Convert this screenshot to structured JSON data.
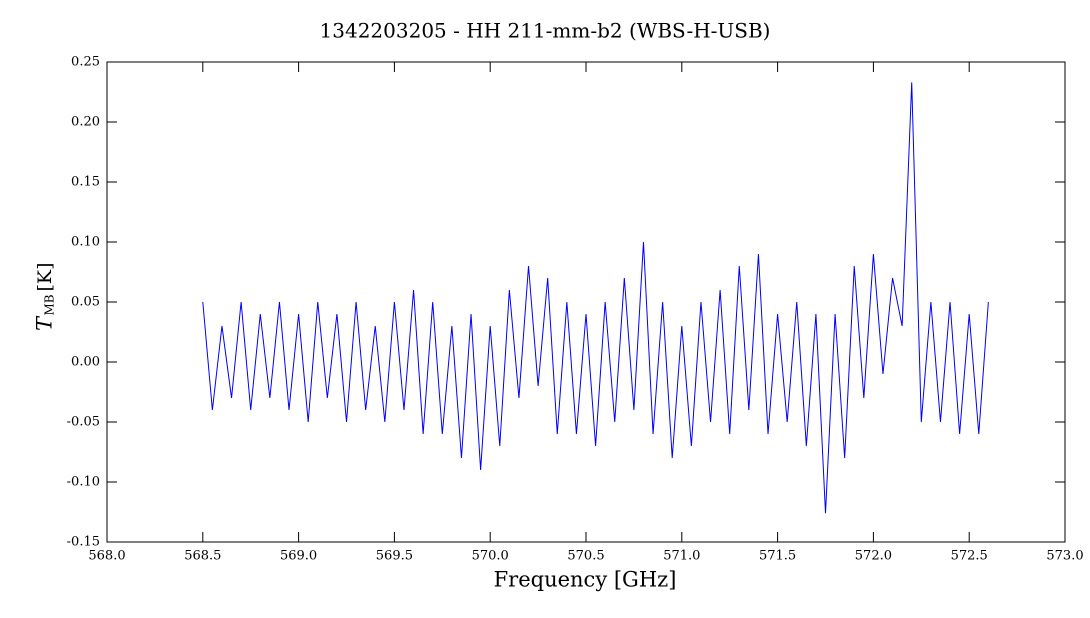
{
  "chart_data": {
    "type": "line",
    "title": "1342203205 - HH 211-mm-b2 (WBS-H-USB)",
    "xlabel": "Frequency [GHz]",
    "ylabel": {
      "main": "T",
      "sub": "MB",
      "unit": "[K]"
    },
    "xlim": [
      568,
      573
    ],
    "ylim": [
      -0.15,
      0.25
    ],
    "xticks": [
      {
        "value": 568,
        "label": "568.0"
      },
      {
        "value": 568.5,
        "label": "568.5"
      },
      {
        "value": 569,
        "label": "569.0"
      },
      {
        "value": 569.5,
        "label": "569.5"
      },
      {
        "value": 570,
        "label": "570.0"
      },
      {
        "value": 570.5,
        "label": "570.5"
      },
      {
        "value": 571,
        "label": "571.0"
      },
      {
        "value": 571.5,
        "label": "571.5"
      },
      {
        "value": 572,
        "label": "572.0"
      },
      {
        "value": 572.5,
        "label": "572.5"
      },
      {
        "value": 573,
        "label": "573.0"
      }
    ],
    "yticks": [
      {
        "value": -0.15,
        "label": "-0.15"
      },
      {
        "value": -0.1,
        "label": "-0.10"
      },
      {
        "value": -0.05,
        "label": "-0.05"
      },
      {
        "value": 0,
        "label": "0.00"
      },
      {
        "value": 0.05,
        "label": "0.05"
      },
      {
        "value": 0.1,
        "label": "0.10"
      },
      {
        "value": 0.15,
        "label": "0.15"
      },
      {
        "value": 0.2,
        "label": "0.20"
      },
      {
        "value": 0.25,
        "label": "0.25"
      }
    ],
    "series": [
      {
        "color": "#0000ff",
        "x": [
          568.5,
          568.55,
          568.6,
          568.65,
          568.7,
          568.75,
          568.8,
          568.85,
          568.9,
          568.95,
          569.0,
          569.05,
          569.1,
          569.15,
          569.2,
          569.25,
          569.3,
          569.35,
          569.4,
          569.45,
          569.5,
          569.55,
          569.6,
          569.65,
          569.7,
          569.75,
          569.8,
          569.85,
          569.9,
          569.95,
          570.0,
          570.05,
          570.1,
          570.15,
          570.2,
          570.25,
          570.3,
          570.35,
          570.4,
          570.45,
          570.5,
          570.55,
          570.6,
          570.65,
          570.7,
          570.75,
          570.8,
          570.85,
          570.9,
          570.95,
          571.0,
          571.05,
          571.1,
          571.15,
          571.2,
          571.25,
          571.3,
          571.35,
          571.4,
          571.45,
          571.5,
          571.55,
          571.6,
          571.65,
          571.7,
          571.75,
          571.8,
          571.85,
          571.9,
          571.95,
          572.0,
          572.05,
          572.1,
          572.15,
          572.2,
          572.25,
          572.3,
          572.35,
          572.4,
          572.45,
          572.5,
          572.55,
          572.6
        ],
        "values": [
          0.05,
          -0.04,
          0.03,
          -0.03,
          0.05,
          -0.04,
          0.04,
          -0.03,
          0.05,
          -0.04,
          0.04,
          -0.05,
          0.05,
          -0.03,
          0.04,
          -0.05,
          0.05,
          -0.04,
          0.03,
          -0.05,
          0.05,
          -0.04,
          0.06,
          -0.06,
          0.05,
          -0.06,
          0.03,
          -0.08,
          0.04,
          -0.09,
          0.03,
          -0.07,
          0.06,
          -0.03,
          0.08,
          -0.02,
          0.07,
          -0.06,
          0.05,
          -0.06,
          0.04,
          -0.07,
          0.05,
          -0.05,
          0.07,
          -0.04,
          0.1,
          -0.06,
          0.05,
          -0.08,
          0.03,
          -0.07,
          0.05,
          -0.05,
          0.06,
          -0.06,
          0.08,
          -0.04,
          0.09,
          -0.06,
          0.04,
          -0.05,
          0.05,
          -0.07,
          0.04,
          -0.126,
          0.04,
          -0.08,
          0.08,
          -0.03,
          0.09,
          -0.01,
          0.07,
          0.03,
          0.233,
          -0.05,
          0.05,
          -0.05,
          0.05,
          -0.06,
          0.04,
          -0.06,
          0.05
        ]
      }
    ]
  }
}
